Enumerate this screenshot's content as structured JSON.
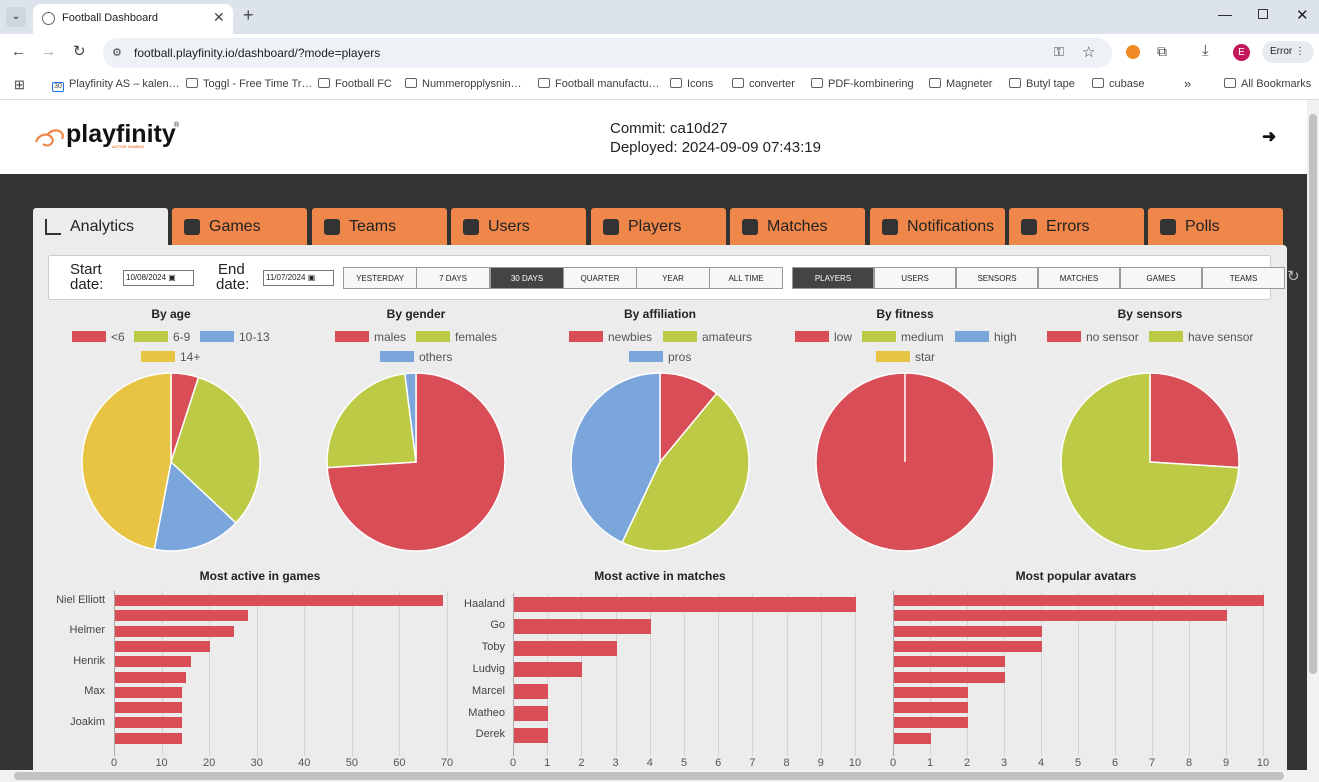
{
  "browser": {
    "tab_title": "Football Dashboard",
    "url": "football.playfinity.io/dashboard/?mode=players",
    "profile_initial": "E",
    "error_label": "Error",
    "bookmarks": [
      "Playfinity AS – kalen…",
      "Toggl - Free Time Tr…",
      "Football FC",
      "Nummeropplysnin…",
      "Football manufactu…",
      "Icons",
      "converter",
      "PDF-kombinering",
      "Magneter",
      "Butyl tape",
      "cubase"
    ],
    "all_bookmarks": "All Bookmarks",
    "calendar_day": "30"
  },
  "header": {
    "logo": "playfinity",
    "logo_reg": "®",
    "logo_sub": "ACTIVE GAMING",
    "commit": "Commit: ca10d27",
    "deployed": "Deployed: 2024-09-09 07:43:19"
  },
  "nav": [
    "Analytics",
    "Games",
    "Teams",
    "Users",
    "Players",
    "Matches",
    "Notifications",
    "Errors",
    "Polls"
  ],
  "filter": {
    "start_label_1": "Start",
    "start_label_2": "date:",
    "start_value": "10/08/2024",
    "end_label_1": "End",
    "end_label_2": "date:",
    "end_value": "11/07/2024",
    "ranges": [
      "YESTERDAY",
      "7 DAYS",
      "30 DAYS",
      "QUARTER",
      "YEAR",
      "ALL TIME"
    ],
    "selected_range": "30 DAYS",
    "modes": [
      "PLAYERS",
      "USERS",
      "SENSORS",
      "MATCHES",
      "GAMES",
      "TEAMS"
    ],
    "selected_mode": "PLAYERS"
  },
  "colors": {
    "red": "#d94d57",
    "green": "#bcca45",
    "blue": "#7ba6db",
    "yellow": "#e8c444",
    "accent": "#f0874a"
  },
  "chart_data": [
    {
      "type": "pie",
      "title": "By age",
      "labels": [
        "<6",
        "6-9",
        "10-13",
        "14+"
      ],
      "values": [
        5,
        32,
        16,
        47
      ]
    },
    {
      "type": "pie",
      "title": "By gender",
      "labels": [
        "males",
        "females",
        "others"
      ],
      "values": [
        74,
        24,
        2
      ]
    },
    {
      "type": "pie",
      "title": "By affiliation",
      "labels": [
        "newbies",
        "amateurs",
        "pros"
      ],
      "values": [
        11,
        46,
        43
      ]
    },
    {
      "type": "pie",
      "title": "By fitness",
      "labels": [
        "low",
        "medium",
        "high",
        "star"
      ],
      "values": [
        100,
        0,
        0,
        0
      ]
    },
    {
      "type": "pie",
      "title": "By sensors",
      "labels": [
        "no sensor",
        "have sensor"
      ],
      "values": [
        26,
        74
      ]
    },
    {
      "type": "bar",
      "orientation": "horizontal",
      "title": "Most active in games",
      "categories": [
        "Niel Elliott",
        "",
        "Helmer",
        "",
        "Henrik",
        "",
        "Max",
        "",
        "Joakim",
        ""
      ],
      "values": [
        69,
        28,
        25,
        20,
        16,
        15,
        14,
        14,
        14,
        14
      ],
      "xlim": [
        0,
        70
      ],
      "ticks": [
        0,
        10,
        20,
        30,
        40,
        50,
        60,
        70
      ]
    },
    {
      "type": "bar",
      "orientation": "horizontal",
      "title": "Most active in matches",
      "categories": [
        "Haaland",
        "Go",
        "Toby",
        "Ludvig",
        "Marcel",
        "Matheo",
        "Derek"
      ],
      "values": [
        10,
        4,
        3,
        2,
        1,
        1,
        1
      ],
      "xlim": [
        0,
        10
      ],
      "ticks": [
        0,
        1,
        2,
        3,
        4,
        5,
        6,
        7,
        8,
        9,
        10
      ]
    },
    {
      "type": "bar",
      "orientation": "horizontal",
      "title": "Most popular avatars",
      "categories": [
        "",
        "",
        "",
        "",
        "",
        "",
        "",
        "",
        "",
        ""
      ],
      "values": [
        10,
        9,
        4,
        4,
        3,
        3,
        2,
        2,
        2,
        1
      ],
      "xlim": [
        0,
        10
      ],
      "ticks": [
        0,
        1,
        2,
        3,
        4,
        5,
        6,
        7,
        8,
        9,
        10
      ]
    }
  ]
}
